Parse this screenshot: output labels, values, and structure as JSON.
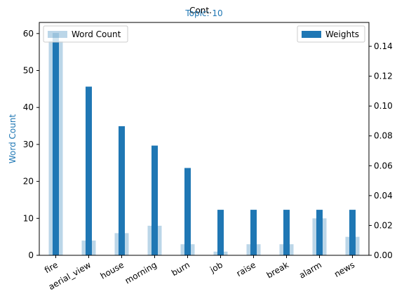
{
  "chart_data": {
    "type": "bar",
    "suptitle": "Cont.",
    "title": "Topic: 10",
    "title_color": "#1f77b4",
    "ylabel": "Word Count",
    "ylabel_color": "#1f77b4",
    "categories": [
      "fire",
      "aerial_view",
      "house",
      "morning",
      "burn",
      "job",
      "raise",
      "break",
      "alarm",
      "news"
    ],
    "series": [
      {
        "name": "Word Count",
        "axis": "left",
        "color": "#1f77b4",
        "opacity": 0.3,
        "values": [
          58,
          4,
          6,
          8,
          3,
          1,
          3,
          3,
          10,
          5
        ]
      },
      {
        "name": "Weights",
        "axis": "right",
        "color": "#1f77b4",
        "opacity": 1.0,
        "values": [
          0.149,
          0.113,
          0.0865,
          0.0735,
          0.0585,
          0.0305,
          0.0305,
          0.0305,
          0.0305,
          0.0305
        ]
      }
    ],
    "ylim_left": [
      0,
      63
    ],
    "ylim_right": [
      0,
      0.156
    ],
    "yticks_left": [
      "0",
      "10",
      "20",
      "30",
      "40",
      "50",
      "60"
    ],
    "yticks_right": [
      "0.00",
      "0.02",
      "0.04",
      "0.06",
      "0.08",
      "0.10",
      "0.12",
      "0.14"
    ],
    "grid": false,
    "legend_left": {
      "placement": "top-left",
      "label": "Word Count"
    },
    "legend_right": {
      "placement": "top-right",
      "label": "Weights"
    }
  }
}
